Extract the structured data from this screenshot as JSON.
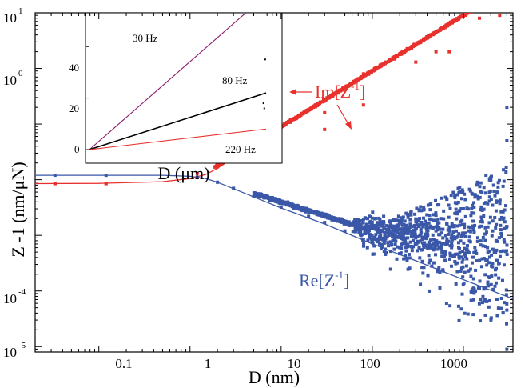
{
  "chart_data": [
    {
      "type": "scatter",
      "xlabel": "D (nm)",
      "ylabel": "Z -1 (nm/μN)",
      "xscale": "log",
      "yscale": "log",
      "xlim": [
        0.02,
        3500
      ],
      "ylim": [
        8e-06,
        10
      ],
      "x_tick_labels": [
        "0.1",
        "1",
        "10",
        "100",
        "1000"
      ],
      "y_tick_labels": [
        {
          "base": "10",
          "exp": "1"
        },
        {
          "base": "10",
          "exp": "0"
        },
        {
          "base": "10",
          "exp": "-4"
        },
        {
          "base": "10",
          "exp": "-5"
        }
      ],
      "colors": {
        "im": "#e8312d",
        "re": "#3a57a8"
      },
      "series": [
        {
          "name": "Im[Z-1]",
          "label_main": "Im[Z",
          "label_sup": "-1",
          "label_end": "]",
          "fit": {
            "x": [
              0.02,
              0.1,
              0.5,
              1,
              1.5,
              2,
              3,
              5,
              10,
              30,
              100,
              300,
              1000,
              3500
            ],
            "y": [
              0.0085,
              0.0086,
              0.0092,
              0.0105,
              0.0125,
              0.016,
              0.025,
              0.044,
              0.09,
              0.27,
              0.9,
              2.7,
              9,
              32
            ]
          },
          "points": {
            "x": [
              0.033,
              0.033,
              0.12,
              0.12,
              1.2,
              1.2,
              2,
              3,
              5,
              8,
              12,
              20,
              30,
              30,
              30,
              80,
              80,
              300,
              500,
              700,
              1500,
              1700,
              1800,
              2000,
              2500,
              3000
            ],
            "y": [
              0.0085,
              0.0085,
              0.0085,
              0.0085,
              0.013,
              0.011,
              0.017,
              0.026,
              0.045,
              0.072,
              0.11,
              0.18,
              0.16,
              0.08,
              0.28,
              0.22,
              0.8,
              1.3,
              2.0,
              2.0,
              8.0,
              20,
              12,
              14,
              9,
              11
            ]
          }
        },
        {
          "name": "Re[Z-1]",
          "label_main": "Re[Z",
          "label_sup": "-1",
          "label_end": "]",
          "fit": {
            "x": [
              0.02,
              0.5,
              1,
              1.5,
              2,
              3,
              5,
              10,
              30,
              100,
              300,
              1000,
              3500
            ],
            "y": [
              0.012,
              0.012,
              0.0115,
              0.0105,
              0.009,
              0.0069,
              0.0049,
              0.0031,
              0.0016,
              0.0007,
              0.00035,
              0.00016,
              7.2e-05
            ]
          },
          "points": {
            "x": [
              0.033,
              0.12,
              1.2,
              2,
              3,
              5,
              10,
              20,
              30,
              50,
              80,
              100,
              120,
              150,
              200,
              300,
              500,
              1000,
              2000,
              3000,
              3000
            ],
            "y": [
              0.012,
              0.012,
              0.011,
              0.009,
              0.007,
              0.005,
              0.0032,
              0.0022,
              0.0017,
              0.0012,
              0.00085,
              0.00075,
              0.0007,
              0.00065,
              0.0006,
              0.0007,
              0.0012,
              0.003,
              0.01,
              0.05,
              0.2
            ]
          }
        }
      ]
    },
    {
      "type": "line",
      "xlabel": "D (μm)",
      "ylim": [
        0,
        50
      ],
      "y_tick_labels": [
        "0",
        "20",
        "40"
      ],
      "series": [
        {
          "name": "30 Hz",
          "color": "#8a1a6a",
          "x": [
            0,
            1
          ],
          "y": [
            0,
            60
          ]
        },
        {
          "name": "80 Hz",
          "color": "#000000",
          "x": [
            0,
            1
          ],
          "y": [
            0,
            22
          ]
        },
        {
          "name": "220 Hz",
          "color": "#e8312d",
          "x": [
            0,
            1
          ],
          "y": [
            0,
            8
          ]
        }
      ]
    }
  ]
}
